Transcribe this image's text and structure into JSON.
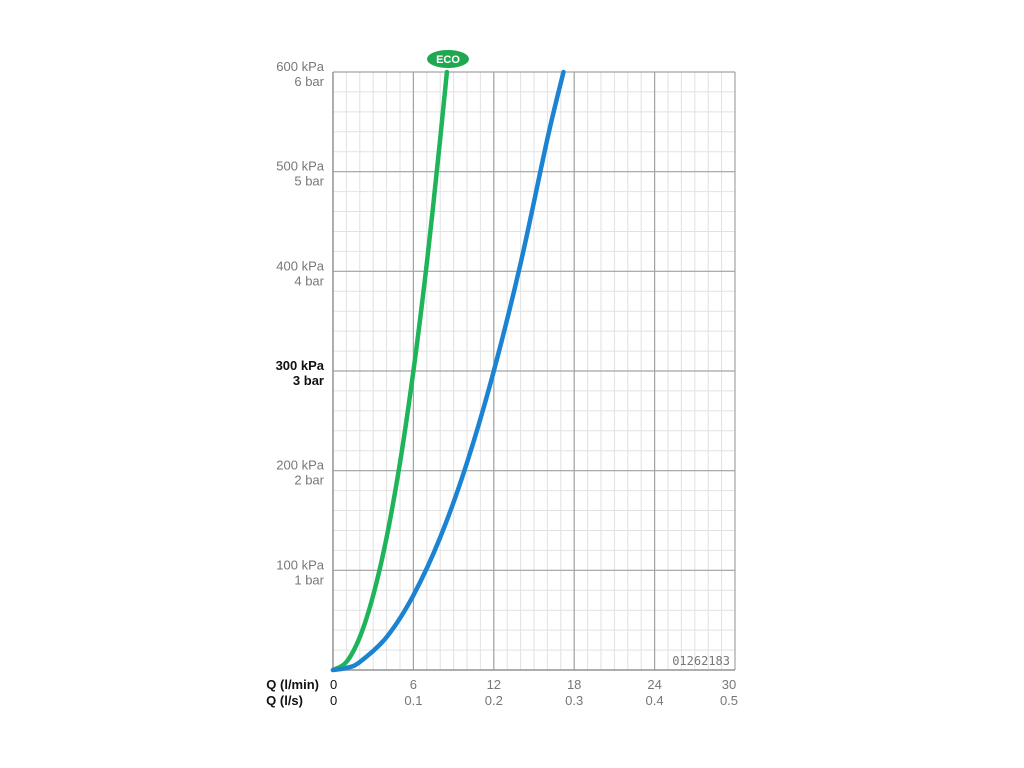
{
  "chart_data": {
    "type": "line",
    "code": "01262183",
    "badge": {
      "text": "ECO",
      "color": "#1fa84f"
    },
    "x_axis": {
      "label_primary": "Q (l/min)",
      "label_secondary": "Q (l/s)",
      "range": [
        0,
        30
      ],
      "ticks_lmin": [
        "0",
        "6",
        "12",
        "18",
        "24",
        "30"
      ],
      "ticks_ls": [
        "0",
        "0.1",
        "0.2",
        "0.3",
        "0.4",
        "0.5"
      ]
    },
    "y_axis": {
      "range": [
        0,
        600
      ],
      "unit": "kPa",
      "ticks_kpa": [
        "600 kPa",
        "500 kPa",
        "400 kPa",
        "300 kPa",
        "200 kPa",
        "100 kPa"
      ],
      "ticks_bar": [
        "6 bar",
        "5 bar",
        "4 bar",
        "3 bar",
        "2 bar",
        "1 bar"
      ],
      "tick_values": [
        600,
        500,
        400,
        300,
        200,
        100
      ],
      "highlight_value": 300
    },
    "grid": true,
    "series": [
      {
        "color": "#1fb45a",
        "x": [
          0,
          1,
          2,
          3,
          4,
          5,
          6,
          7,
          8,
          8.5
        ],
        "y": [
          0,
          8,
          33,
          75,
          133,
          208,
          300,
          408,
          533,
          600
        ]
      },
      {
        "color": "#1b83d1",
        "x": [
          0,
          1,
          2,
          4,
          6,
          8,
          10,
          12,
          14,
          16,
          17.2
        ],
        "y": [
          0,
          2,
          8,
          33,
          75,
          133,
          208,
          300,
          408,
          533,
          600
        ]
      }
    ]
  }
}
